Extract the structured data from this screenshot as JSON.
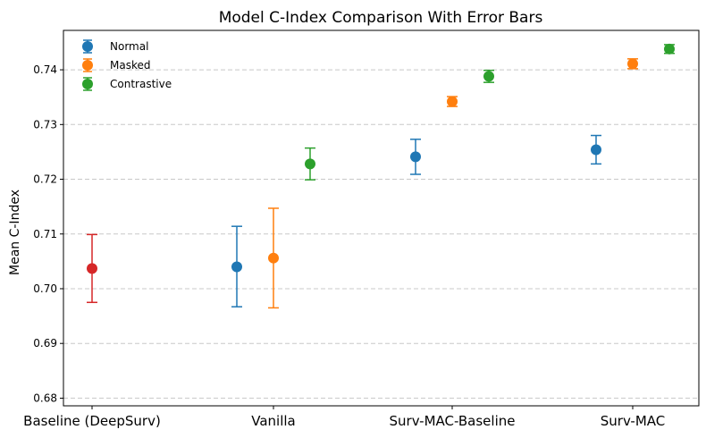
{
  "chart_data": {
    "type": "scatter",
    "title": "Model C-Index Comparison With Error Bars",
    "xlabel": "",
    "ylabel": "Mean C-Index",
    "categories": [
      "Baseline (DeepSurv)",
      "Vanilla",
      "Surv-MAC-Baseline",
      "Surv-MAC"
    ],
    "ylim": [
      0.6786,
      0.7472
    ],
    "yticks": [
      "0.68",
      "0.69",
      "0.70",
      "0.71",
      "0.72",
      "0.73",
      "0.74"
    ],
    "grid": "horizontal dashed",
    "legend_position": "top-left",
    "colors": {
      "normal": "#1f77b4",
      "masked": "#ff7f0e",
      "contrastive": "#2ca02c",
      "baseline": "#d62728"
    },
    "legend": [
      {
        "name": "Normal",
        "color": "#1f77b4"
      },
      {
        "name": "Masked",
        "color": "#ff7f0e"
      },
      {
        "name": "Contrastive",
        "color": "#2ca02c"
      }
    ],
    "series": [
      {
        "name": "",
        "color": "#d62728",
        "points": [
          {
            "category": "Baseline (DeepSurv)",
            "offset": 0,
            "y": 0.7037,
            "err_low": 0.6975,
            "err_high": 0.7099
          }
        ]
      },
      {
        "name": "Normal",
        "color": "#1f77b4",
        "points": [
          {
            "category": "Vanilla",
            "offset": -1,
            "y": 0.704,
            "err_low": 0.6967,
            "err_high": 0.7114
          },
          {
            "category": "Surv-MAC-Baseline",
            "offset": -1,
            "y": 0.7241,
            "err_low": 0.7209,
            "err_high": 0.7273
          },
          {
            "category": "Surv-MAC",
            "offset": -1,
            "y": 0.7254,
            "err_low": 0.7228,
            "err_high": 0.728
          }
        ]
      },
      {
        "name": "Masked",
        "color": "#ff7f0e",
        "points": [
          {
            "category": "Vanilla",
            "offset": 0,
            "y": 0.7056,
            "err_low": 0.6965,
            "err_high": 0.7147
          },
          {
            "category": "Surv-MAC-Baseline",
            "offset": 0,
            "y": 0.7342,
            "err_low": 0.7333,
            "err_high": 0.7351
          },
          {
            "category": "Surv-MAC",
            "offset": 0,
            "y": 0.7411,
            "err_low": 0.7402,
            "err_high": 0.742
          }
        ]
      },
      {
        "name": "Contrastive",
        "color": "#2ca02c",
        "points": [
          {
            "category": "Vanilla",
            "offset": 1,
            "y": 0.7228,
            "err_low": 0.7199,
            "err_high": 0.7257
          },
          {
            "category": "Surv-MAC-Baseline",
            "offset": 1,
            "y": 0.7388,
            "err_low": 0.7377,
            "err_high": 0.7399
          },
          {
            "category": "Surv-MAC",
            "offset": 1,
            "y": 0.7438,
            "err_low": 0.743,
            "err_high": 0.7446
          }
        ]
      }
    ]
  }
}
